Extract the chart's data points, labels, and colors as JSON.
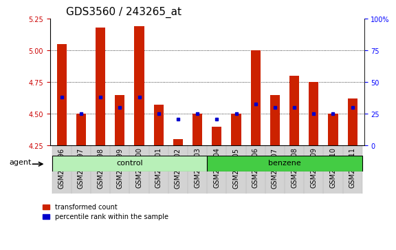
{
  "title": "GDS3560 / 243265_at",
  "samples": [
    "GSM243796",
    "GSM243797",
    "GSM243798",
    "GSM243799",
    "GSM243800",
    "GSM243801",
    "GSM243802",
    "GSM243803",
    "GSM243804",
    "GSM243805",
    "GSM243806",
    "GSM243807",
    "GSM243808",
    "GSM243809",
    "GSM243810",
    "GSM243811"
  ],
  "red_values": [
    5.05,
    4.5,
    5.18,
    4.65,
    5.19,
    4.57,
    4.3,
    4.5,
    4.4,
    4.5,
    5.0,
    4.65,
    4.8,
    4.75,
    4.5,
    4.62
  ],
  "blue_values": [
    4.63,
    4.5,
    4.63,
    4.55,
    4.63,
    4.5,
    4.46,
    4.5,
    4.46,
    4.5,
    4.58,
    4.55,
    4.55,
    4.5,
    4.5,
    4.55
  ],
  "base": 4.25,
  "ylim_left": [
    4.25,
    5.25
  ],
  "yticks_left": [
    4.25,
    4.5,
    4.75,
    5.0,
    5.25
  ],
  "yticks_right": [
    0,
    25,
    50,
    75,
    100
  ],
  "right_label_color": "#0000ff",
  "left_label_color": "#cc0000",
  "bar_color": "#cc2200",
  "marker_color": "#0000cc",
  "bg_xticklabels": "#d3d3d3",
  "control_color": "#b8f0b8",
  "benzene_color": "#44cc44",
  "agent_label": "agent",
  "legend_red": "transformed count",
  "legend_blue": "percentile rank within the sample",
  "title_fontsize": 11,
  "tick_fontsize": 7,
  "group_fontsize": 8
}
